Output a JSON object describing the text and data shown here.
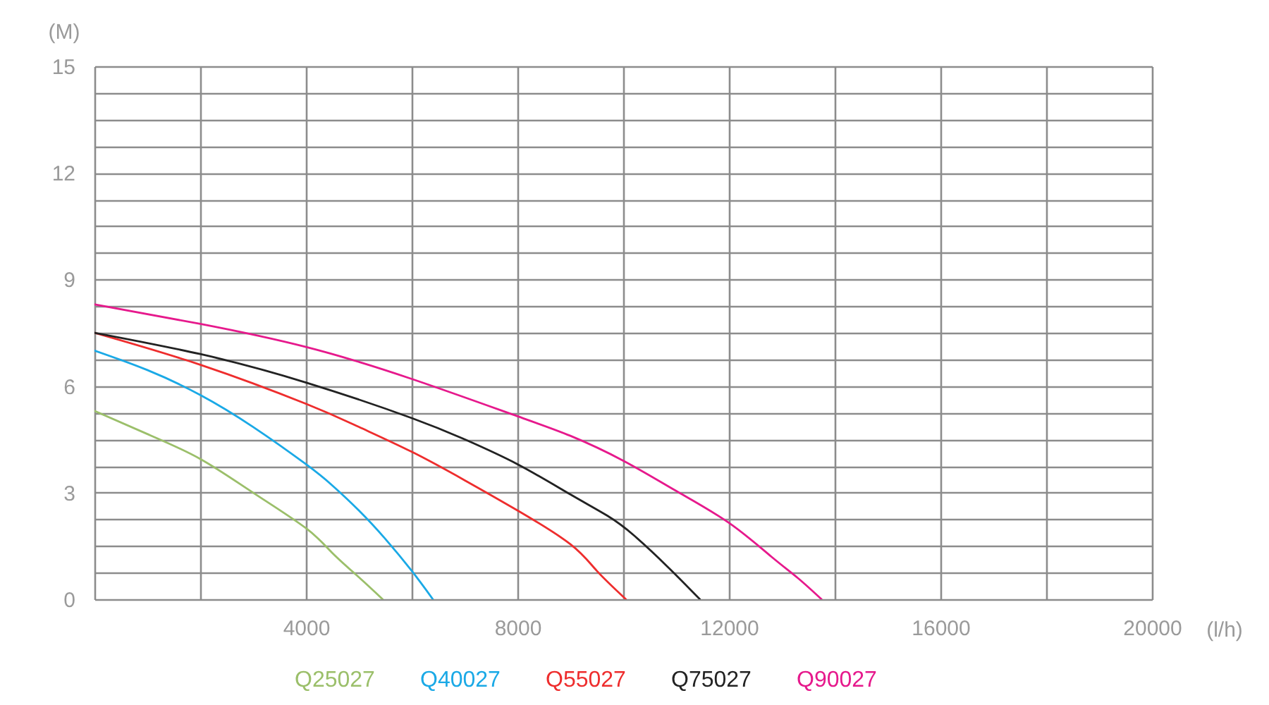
{
  "chart_data": {
    "type": "line",
    "xlabel": "(l/h)",
    "ylabel": "(M)",
    "xlim": [
      0,
      20000
    ],
    "ylim": [
      0,
      15
    ],
    "xticks": [
      {
        "value": 0,
        "label": null
      },
      {
        "value": 2000,
        "label": null
      },
      4000,
      {
        "value": 6000,
        "label": null
      },
      8000,
      {
        "value": 10000,
        "label": null
      },
      12000,
      {
        "value": 14000,
        "label": null
      },
      16000,
      {
        "value": 18000,
        "label": null
      },
      20000
    ],
    "yticks": [
      0,
      {
        "value": 0.75,
        "label": null
      },
      {
        "value": 1.5,
        "label": null
      },
      {
        "value": 2.25,
        "label": null
      },
      3,
      {
        "value": 3.75,
        "label": null
      },
      {
        "value": 4.5,
        "label": null
      },
      {
        "value": 5.25,
        "label": null
      },
      6,
      {
        "value": 6.75,
        "label": null
      },
      {
        "value": 7.5,
        "label": null
      },
      {
        "value": 8.25,
        "label": null
      },
      9,
      {
        "value": 9.75,
        "label": null
      },
      {
        "value": 10.5,
        "label": null
      },
      {
        "value": 11.25,
        "label": null
      },
      12,
      {
        "value": 12.75,
        "label": null
      },
      {
        "value": 13.5,
        "label": null
      },
      {
        "value": 14.25,
        "label": null
      },
      15
    ],
    "grid": true,
    "legend": "bottom",
    "series": [
      {
        "name": "Q25027",
        "color": "#9bbf6a",
        "x": [
          0,
          1000,
          2000,
          3000,
          4000,
          4500,
          5000,
          5450
        ],
        "values": [
          5.3,
          4.65,
          3.95,
          3.0,
          2.0,
          1.3,
          0.62,
          0
        ]
      },
      {
        "name": "Q40027",
        "color": "#1aa9e6",
        "x": [
          0,
          1000,
          2000,
          3000,
          4000,
          4500,
          5000,
          5500,
          6000,
          6400
        ],
        "values": [
          7.0,
          6.45,
          5.75,
          4.85,
          3.8,
          3.2,
          2.5,
          1.7,
          0.8,
          0
        ]
      },
      {
        "name": "Q55027",
        "color": "#ee2d2d",
        "x": [
          0,
          2000,
          4000,
          5000,
          6000,
          7000,
          8000,
          9000,
          9500,
          10050
        ],
        "values": [
          7.5,
          6.6,
          5.5,
          4.85,
          4.15,
          3.35,
          2.5,
          1.55,
          0.8,
          0
        ]
      },
      {
        "name": "Q75027",
        "color": "#222222",
        "x": [
          0,
          2000,
          4000,
          6000,
          7000,
          8000,
          9000,
          9700,
          10200,
          10850,
          11450
        ],
        "values": [
          7.5,
          6.9,
          6.1,
          5.1,
          4.5,
          3.8,
          2.95,
          2.35,
          1.8,
          0.9,
          0
        ]
      },
      {
        "name": "Q90027",
        "color": "#e6198c",
        "x": [
          0,
          2000,
          4000,
          6000,
          8000,
          9000,
          10000,
          11000,
          12000,
          12800,
          13300,
          13750
        ],
        "values": [
          8.3,
          7.75,
          7.1,
          6.2,
          5.15,
          4.6,
          3.9,
          3.05,
          2.15,
          1.2,
          0.6,
          0
        ]
      }
    ]
  }
}
